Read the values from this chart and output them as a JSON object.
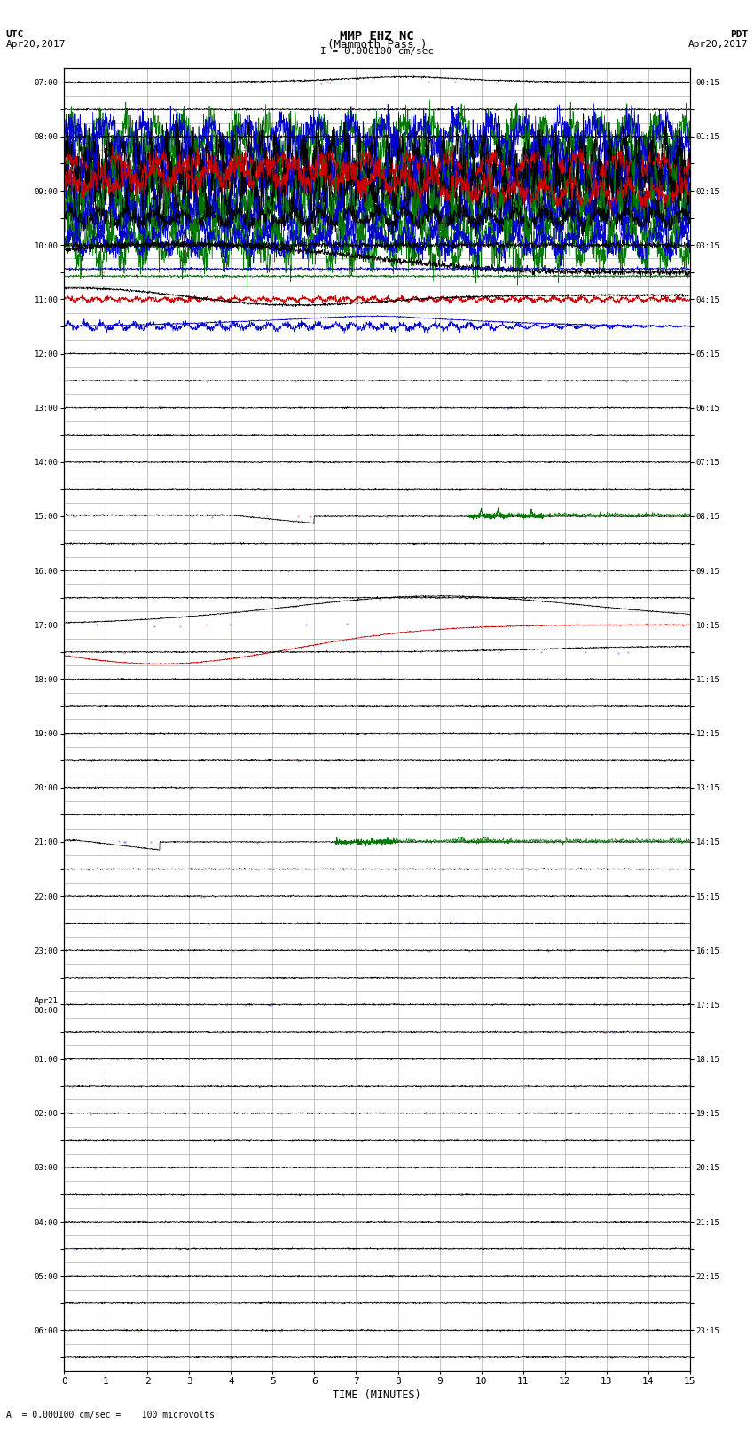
{
  "title_line1": "MMP EHZ NC",
  "title_line2": "(Mammoth Pass )",
  "title_line3": "I = 0.000100 cm/sec",
  "left_label_top": "UTC",
  "left_label_date": "Apr20,2017",
  "right_label_top": "PDT",
  "right_label_date": "Apr20,2017",
  "bottom_label": "TIME (MINUTES)",
  "footer_text": "A  = 0.000100 cm/sec =    100 microvolts",
  "bg_color": "#ffffff",
  "grid_color": "#999999",
  "fig_width": 8.5,
  "fig_height": 16.13,
  "utc_labels": [
    "07:00",
    "",
    "08:00",
    "",
    "09:00",
    "",
    "10:00",
    "",
    "11:00",
    "",
    "12:00",
    "",
    "13:00",
    "",
    "14:00",
    "",
    "15:00",
    "",
    "16:00",
    "",
    "17:00",
    "",
    "18:00",
    "",
    "19:00",
    "",
    "20:00",
    "",
    "21:00",
    "",
    "22:00",
    "",
    "23:00",
    "",
    "Apr21\n00:00",
    "",
    "01:00",
    "",
    "02:00",
    "",
    "03:00",
    "",
    "04:00",
    "",
    "05:00",
    "",
    "06:00",
    ""
  ],
  "pdt_labels": [
    "00:15",
    "",
    "01:15",
    "",
    "02:15",
    "",
    "03:15",
    "",
    "04:15",
    "",
    "05:15",
    "",
    "06:15",
    "",
    "07:15",
    "",
    "08:15",
    "",
    "09:15",
    "",
    "10:15",
    "",
    "11:15",
    "",
    "12:15",
    "",
    "13:15",
    "",
    "14:15",
    "",
    "15:15",
    "",
    "16:15",
    "",
    "17:15",
    "",
    "18:15",
    "",
    "19:15",
    "",
    "20:15",
    "",
    "21:15",
    "",
    "22:15",
    "",
    "23:15",
    ""
  ],
  "x_ticks": [
    0,
    1,
    2,
    3,
    4,
    5,
    6,
    7,
    8,
    9,
    10,
    11,
    12,
    13,
    14,
    15
  ],
  "x_lim": [
    0,
    15
  ],
  "colors": {
    "black": "#000000",
    "red": "#cc0000",
    "blue": "#0000cc",
    "green": "#007700"
  }
}
